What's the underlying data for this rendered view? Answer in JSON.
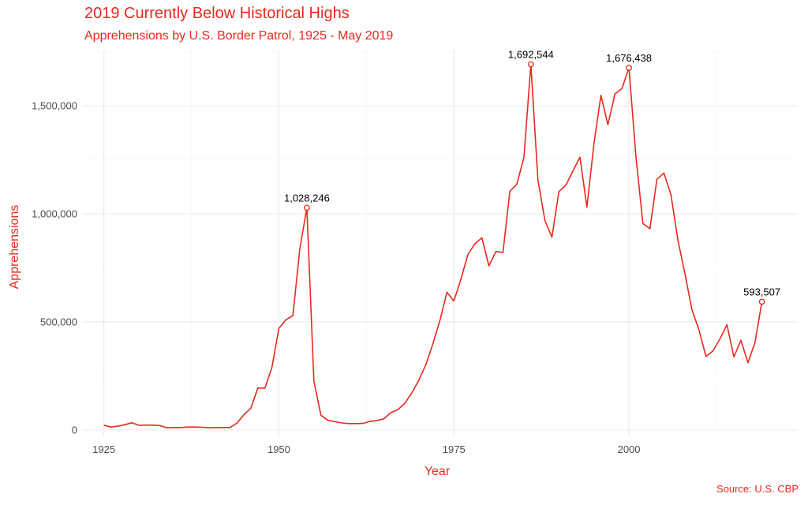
{
  "chart_data": {
    "type": "line",
    "title": "2019 Currently Below Historical Highs",
    "subtitle": "Apprehensions by U.S. Border Patrol, 1925 - May 2019",
    "xlabel": "Year",
    "ylabel": "Apprehensions",
    "caption": "Source: U.S. CBP",
    "xlim": [
      1922,
      2024
    ],
    "ylim": [
      -30000,
      1760000
    ],
    "xticks": [
      1925,
      1950,
      1975,
      2000
    ],
    "xtick_labels": [
      "1925",
      "1950",
      "1975",
      "2000"
    ],
    "yticks": [
      0,
      500000,
      1000000,
      1500000
    ],
    "ytick_labels": [
      "0",
      "500,000",
      "1,000,000",
      "1,500,000"
    ],
    "grid": true,
    "color": "#e8291c",
    "series": [
      {
        "x": [
          1925,
          1926,
          1927,
          1928,
          1929,
          1930,
          1931,
          1932,
          1933,
          1934,
          1935,
          1936,
          1937,
          1938,
          1939,
          1940,
          1941,
          1942,
          1943,
          1944,
          1945,
          1946,
          1947,
          1948,
          1949,
          1950,
          1951,
          1952,
          1953,
          1954,
          1955,
          1956,
          1957,
          1958,
          1959,
          1960,
          1961,
          1962,
          1963,
          1964,
          1965,
          1966,
          1967,
          1968,
          1969,
          1970,
          1971,
          1972,
          1973,
          1974,
          1975,
          1976,
          1977,
          1978,
          1979,
          1980,
          1981,
          1982,
          1983,
          1984,
          1985,
          1986,
          1987,
          1988,
          1989,
          1990,
          1991,
          1992,
          1993,
          1994,
          1995,
          1996,
          1997,
          1998,
          1999,
          2000,
          2001,
          2002,
          2003,
          2004,
          2005,
          2006,
          2007,
          2008,
          2009,
          2010,
          2011,
          2012,
          2013,
          2014,
          2015,
          2016,
          2017,
          2018,
          2019
        ],
        "values": [
          22000,
          13000,
          17000,
          24000,
          33000,
          21000,
          22000,
          22000,
          20000,
          10000,
          11000,
          11000,
          13000,
          13000,
          12000,
          10000,
          11000,
          11000,
          11000,
          31000,
          70000,
          100000,
          194000,
          193000,
          289000,
          469000,
          510000,
          529000,
          839000,
          1028246,
          226000,
          68000,
          44000,
          38000,
          32000,
          29000,
          29000,
          30000,
          39000,
          43000,
          51000,
          80000,
          94000,
          123000,
          172000,
          231000,
          302000,
          399000,
          506000,
          637000,
          597000,
          697000,
          812000,
          862000,
          889000,
          759000,
          826000,
          821000,
          1105000,
          1138000,
          1262000,
          1692544,
          1158000,
          969000,
          892000,
          1103000,
          1133000,
          1199000,
          1263000,
          1031000,
          1324000,
          1549000,
          1413000,
          1555000,
          1580000,
          1676438,
          1266000,
          955000,
          932000,
          1160000,
          1189000,
          1089000,
          877000,
          724000,
          556000,
          463000,
          340000,
          365000,
          421000,
          487000,
          337000,
          415000,
          311000,
          404000,
          593507
        ]
      }
    ],
    "annotations": [
      {
        "x": 1954,
        "y": 1028246,
        "label": "1,028,246"
      },
      {
        "x": 1986,
        "y": 1692544,
        "label": "1,692,544"
      },
      {
        "x": 2000,
        "y": 1676438,
        "label": "1,676,438"
      },
      {
        "x": 2019,
        "y": 593507,
        "label": "593,507"
      }
    ]
  }
}
